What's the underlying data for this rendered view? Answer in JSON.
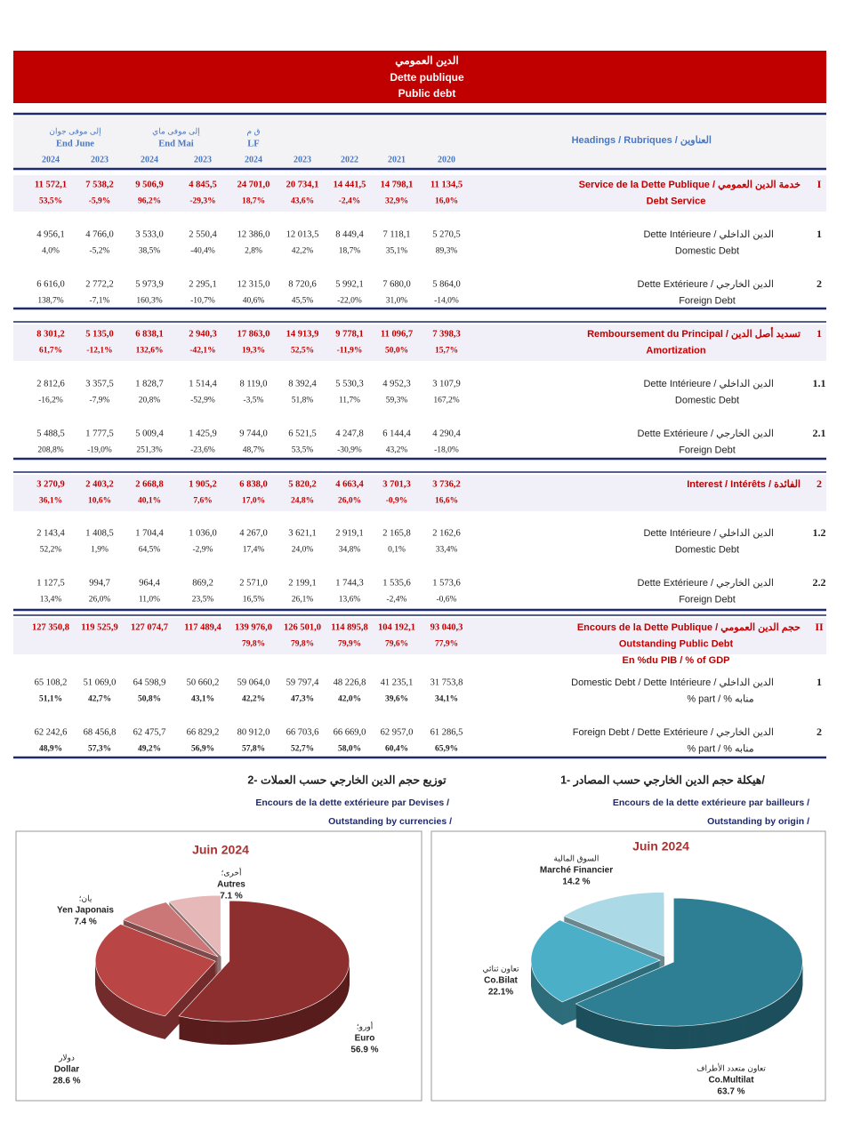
{
  "header": {
    "title_ar": "الدين العمومي",
    "title_fr": "Dette publique",
    "title_en": "Public debt"
  },
  "table": {
    "column_groups": [
      {
        "ar": "إلى موفى جوان",
        "label": "End June",
        "years": [
          "2024",
          "2023"
        ]
      },
      {
        "ar": "إلى موفى ماي",
        "label": "End Mai",
        "years": [
          "2024",
          "2023"
        ]
      },
      {
        "ar": "ق م",
        "label": "LF",
        "years": [
          "2024"
        ]
      }
    ],
    "other_years": [
      "2023",
      "2022",
      "2021",
      "2020"
    ],
    "headings_label": "Headings / Rubriques / العناوين",
    "sections": [
      {
        "rows": [
          {
            "num": "I",
            "label": [
              "Service de la Dette Publique / خدمة الدين العمومي",
              "Debt Service"
            ],
            "values": [
              [
                "11 572,1",
                "7 538,2",
                "9 506,9",
                "4 845,5",
                "24 701,0",
                "20 734,1",
                "14 441,5",
                "14 798,1",
                "11 134,5"
              ],
              [
                "53,5%",
                "-5,9%",
                "96,2%",
                "-29,3%",
                "18,7%",
                "43,6%",
                "-2,4%",
                "32,9%",
                "16,0%"
              ]
            ]
          },
          {
            "num": "1",
            "label": [
              "Dette Intérieure / الدين الداخلي",
              "Domestic Debt"
            ],
            "values": [
              [
                "4 956,1",
                "4 766,0",
                "3 533,0",
                "2 550,4",
                "12 386,0",
                "12 013,5",
                "8 449,4",
                "7 118,1",
                "5 270,5"
              ],
              [
                "4,0%",
                "-5,2%",
                "38,5%",
                "-40,4%",
                "2,8%",
                "42,2%",
                "18,7%",
                "35,1%",
                "89,3%"
              ]
            ]
          },
          {
            "num": "2",
            "label": [
              "Dette Extérieure / الدين الخارجي",
              "Foreign Debt"
            ],
            "values": [
              [
                "6 616,0",
                "2 772,2",
                "5 973,9",
                "2 295,1",
                "12 315,0",
                "8 720,6",
                "5 992,1",
                "7 680,0",
                "5 864,0"
              ],
              [
                "138,7%",
                "-7,1%",
                "160,3%",
                "-10,7%",
                "40,6%",
                "45,5%",
                "-22,0%",
                "31,0%",
                "-14,0%"
              ]
            ]
          }
        ]
      },
      {
        "rows": [
          {
            "num": "1",
            "label": [
              "Remboursement du Principal / تسديد أصل الدين",
              "Amortization"
            ],
            "values": [
              [
                "8 301,2",
                "5 135,0",
                "6 838,1",
                "2 940,3",
                "17 863,0",
                "14 913,9",
                "9 778,1",
                "11 096,7",
                "7 398,3"
              ],
              [
                "61,7%",
                "-12,1%",
                "132,6%",
                "-42,1%",
                "19,3%",
                "52,5%",
                "-11,9%",
                "50,0%",
                "15,7%"
              ]
            ]
          },
          {
            "num": "1.1",
            "label": [
              "Dette Intérieure / الدين الداخلي",
              "Domestic Debt"
            ],
            "values": [
              [
                "2 812,6",
                "3 357,5",
                "1 828,7",
                "1 514,4",
                "8 119,0",
                "8 392,4",
                "5 530,3",
                "4 952,3",
                "3 107,9"
              ],
              [
                "-16,2%",
                "-7,9%",
                "20,8%",
                "-52,9%",
                "-3,5%",
                "51,8%",
                "11,7%",
                "59,3%",
                "167,2%"
              ]
            ]
          },
          {
            "num": "2.1",
            "label": [
              "Dette Extérieure / الدين الخارجي",
              "Foreign Debt"
            ],
            "values": [
              [
                "5 488,5",
                "1 777,5",
                "5 009,4",
                "1 425,9",
                "9 744,0",
                "6 521,5",
                "4 247,8",
                "6 144,4",
                "4 290,4"
              ],
              [
                "208,8%",
                "-19,0%",
                "251,3%",
                "-23,6%",
                "48,7%",
                "53,5%",
                "-30,9%",
                "43,2%",
                "-18,0%"
              ]
            ]
          }
        ]
      },
      {
        "rows": [
          {
            "num": "2",
            "label": [
              "Interest / Intérêts / الفائدة"
            ],
            "values": [
              [
                "3 270,9",
                "2 403,2",
                "2 668,8",
                "1 905,2",
                "6 838,0",
                "5 820,2",
                "4 663,4",
                "3 701,3",
                "3 736,2"
              ],
              [
                "36,1%",
                "10,6%",
                "40,1%",
                "7,6%",
                "17,0%",
                "24,8%",
                "26,0%",
                "-0,9%",
                "16,6%"
              ]
            ]
          },
          {
            "num": "1.2",
            "label": [
              "Dette Intérieure / الدين الداخلي",
              "Domestic Debt"
            ],
            "values": [
              [
                "2 143,4",
                "1 408,5",
                "1 704,4",
                "1 036,0",
                "4 267,0",
                "3 621,1",
                "2 919,1",
                "2 165,8",
                "2 162,6"
              ],
              [
                "52,2%",
                "1,9%",
                "64,5%",
                "-2,9%",
                "17,4%",
                "24,0%",
                "34,8%",
                "0,1%",
                "33,4%"
              ]
            ]
          },
          {
            "num": "2.2",
            "label": [
              "Dette Extérieure / الدين الخارجي",
              "Foreign Debt"
            ],
            "values": [
              [
                "1 127,5",
                "994,7",
                "964,4",
                "869,2",
                "2 571,0",
                "2 199,1",
                "1 744,3",
                "1 535,6",
                "1 573,6"
              ],
              [
                "13,4%",
                "26,0%",
                "11,0%",
                "23,5%",
                "16,5%",
                "26,1%",
                "13,6%",
                "-2,4%",
                "-0,6%"
              ]
            ]
          }
        ]
      },
      {
        "rows": [
          {
            "num": "II",
            "label": [
              "Encours de la Dette Publique / حجم الدين العمومي",
              "Outstanding  Public Debt",
              "En %du PIB  / % of GDP"
            ],
            "values": [
              [
                "127 350,8",
                "119 525,9",
                "127 074,7",
                "117 489,4",
                "139 976,0",
                "126 501,0",
                "114 895,8",
                "104 192,1",
                "93 040,3"
              ],
              [
                null,
                null,
                null,
                null,
                "79,8%",
                "79,8%",
                "79,9%",
                "79,6%",
                "77,9%"
              ]
            ]
          },
          {
            "num": "1",
            "label": [
              "Domestic Debt / Dette Intérieure / الدين الداخلي",
              "% part / % منابه"
            ],
            "values": [
              [
                "65 108,2",
                "51 069,0",
                "64 598,9",
                "50 660,2",
                "59 064,0",
                "59 797,4",
                "48 226,8",
                "41 235,1",
                "31 753,8"
              ],
              [
                "51,1%",
                "42,7%",
                "50,8%",
                "43,1%",
                "42,2%",
                "47,3%",
                "42,0%",
                "39,6%",
                "34,1%"
              ]
            ]
          },
          {
            "num": "2",
            "label": [
              "Foreign Debt / Dette Extérieure / الدين الخارجي",
              "% part / % منابه"
            ],
            "values": [
              [
                "62 242,6",
                "68 456,8",
                "62 475,7",
                "66 829,2",
                "80 912,0",
                "66 703,6",
                "66 669,0",
                "62 957,0",
                "61 286,5"
              ],
              [
                "48,9%",
                "57,3%",
                "49,2%",
                "56,9%",
                "57,8%",
                "52,7%",
                "58,0%",
                "60,4%",
                "65,9%"
              ]
            ]
          }
        ]
      }
    ]
  },
  "chart_data": [
    {
      "type": "pie",
      "heading": [
        "2- توزيع حجم الدين الخارجي حسب العملات",
        "Encours de la dette extérieure par Devises /",
        "Outstanding  by currencies /"
      ],
      "title": "Juin 2024",
      "categories": [
        "Euro",
        "Dollar",
        "Yen Japonais",
        "Autres"
      ],
      "categories_ar": [
        "أورو؛",
        "دولار",
        "يان؛",
        "أخرى؛"
      ],
      "values": [
        56.9,
        28.6,
        7.4,
        7.1
      ],
      "value_labels": [
        "56.9 %",
        "28.6 %",
        "7.4 %",
        "7.1 %"
      ],
      "colors": [
        "#8e2f2f",
        "#b94545",
        "#cc7777",
        "#e6b8b8"
      ]
    },
    {
      "type": "pie",
      "heading": [
        "1- هيكلة حجم الدين الخارجي حسب المصادر/",
        "Encours de la dette extérieure par bailleurs /",
        "Outstanding  by origin /"
      ],
      "title": "Juin 2024",
      "categories": [
        "Co.Multilat",
        "Co.Bilat",
        "Marché Financier"
      ],
      "categories_ar": [
        "تعاون متعدد الأطراف",
        "تعاون ثنائي",
        "السوق المالية"
      ],
      "values": [
        63.7,
        22.1,
        14.2
      ],
      "value_labels": [
        "63.7 %",
        "22.1%",
        "14.2 %"
      ],
      "colors": [
        "#2f7f94",
        "#4aafc7",
        "#acd9e6"
      ]
    }
  ]
}
